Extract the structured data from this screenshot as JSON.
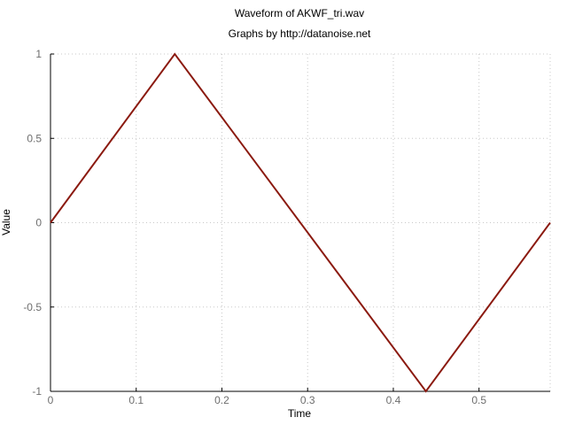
{
  "chart_data": {
    "type": "line",
    "title": "Waveform of AKWF_tri.wav",
    "subtitle": "Graphs by http://datanoise.net",
    "xlabel": "Time",
    "ylabel": "Value",
    "xlim": [
      0,
      0.583
    ],
    "ylim": [
      -1,
      1
    ],
    "xticks": [
      0,
      0.1,
      0.2,
      0.3,
      0.4,
      0.5
    ],
    "xtick_labels": [
      "0",
      "0.1",
      "0.2",
      "0.3",
      "0.4",
      "0.5"
    ],
    "yticks": [
      -1,
      -0.5,
      0,
      0.5,
      1
    ],
    "ytick_labels": [
      "-1",
      "-0.5",
      "0",
      "0.5",
      "1"
    ],
    "grid": true,
    "series": [
      {
        "color": "#8b1a10",
        "x": [
          0,
          0.145,
          0.438,
          0.583
        ],
        "y": [
          0,
          1,
          -1,
          0
        ]
      }
    ]
  }
}
